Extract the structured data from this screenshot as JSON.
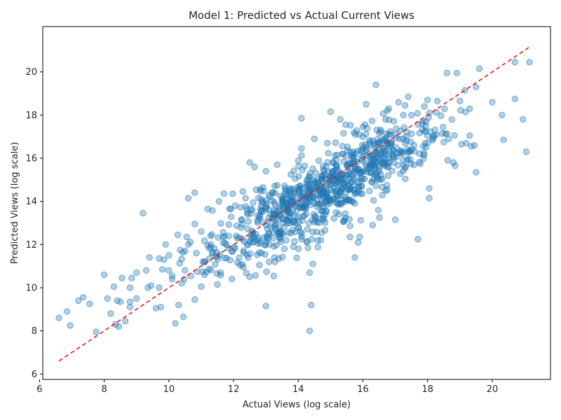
{
  "chart_data": {
    "type": "scatter",
    "title": "Model 1: Predicted vs Actual Current Views",
    "xlabel": "Actual Views (log scale)",
    "ylabel": "Predicted Views (log scale)",
    "xlim": [
      6.1,
      21.8
    ],
    "ylim": [
      5.75,
      22.1
    ],
    "xticks": [
      6,
      8,
      10,
      12,
      14,
      16,
      18,
      20
    ],
    "yticks": [
      6,
      8,
      10,
      12,
      14,
      16,
      18,
      20
    ],
    "grid": false,
    "point_color": "#1f77b4",
    "point_alpha": 0.35,
    "reference_line": {
      "x": [
        6.6,
        21.2
      ],
      "y": [
        6.6,
        21.2
      ],
      "color": "#e41a1c",
      "style": "dashed"
    },
    "points_explicit": [
      [
        6.6,
        8.6
      ],
      [
        6.85,
        8.9
      ],
      [
        6.95,
        8.25
      ],
      [
        7.2,
        9.4
      ],
      [
        7.35,
        9.55
      ],
      [
        7.55,
        9.25
      ],
      [
        7.75,
        7.95
      ],
      [
        8.0,
        10.6
      ],
      [
        8.1,
        9.5
      ],
      [
        8.2,
        8.8
      ],
      [
        8.3,
        10.05
      ],
      [
        8.35,
        8.3
      ],
      [
        8.4,
        9.4
      ],
      [
        8.45,
        8.2
      ],
      [
        8.5,
        9.35
      ],
      [
        8.55,
        10.45
      ],
      [
        8.65,
        8.45
      ],
      [
        8.8,
        10.0
      ],
      [
        8.8,
        9.1
      ],
      [
        8.8,
        9.35
      ],
      [
        8.85,
        10.45
      ],
      [
        9.0,
        10.7
      ],
      [
        9.0,
        9.5
      ],
      [
        9.2,
        13.45
      ],
      [
        9.3,
        10.8
      ],
      [
        9.35,
        10.0
      ],
      [
        9.4,
        11.4
      ],
      [
        9.45,
        10.1
      ],
      [
        9.6,
        9.05
      ],
      [
        9.7,
        10.0
      ],
      [
        9.7,
        11.35
      ],
      [
        9.75,
        9.1
      ],
      [
        9.8,
        10.85
      ],
      [
        9.85,
        11.3
      ],
      [
        9.9,
        12.0
      ],
      [
        10.0,
        10.8
      ],
      [
        10.0,
        11.5
      ],
      [
        10.1,
        10.55
      ],
      [
        10.1,
        10.4
      ],
      [
        10.2,
        8.35
      ],
      [
        10.3,
        9.2
      ],
      [
        10.35,
        11.75
      ],
      [
        10.4,
        10.2
      ],
      [
        10.45,
        8.65
      ],
      [
        10.5,
        10.8
      ],
      [
        10.5,
        11.7
      ],
      [
        10.55,
        12.35
      ],
      [
        10.6,
        14.15
      ],
      [
        10.6,
        12.0
      ],
      [
        10.8,
        9.45
      ],
      [
        10.8,
        14.4
      ],
      [
        10.85,
        11.6
      ],
      [
        10.8,
        12.95
      ],
      [
        11.0,
        10.05
      ],
      [
        11.0,
        12.6
      ],
      [
        11.05,
        11.2
      ],
      [
        11.1,
        10.6
      ],
      [
        11.2,
        13.65
      ],
      [
        11.3,
        12.0
      ],
      [
        11.5,
        10.15
      ],
      [
        11.55,
        14.0
      ],
      [
        11.6,
        10.7
      ],
      [
        11.85,
        12.4
      ],
      [
        11.95,
        10.4
      ],
      [
        12.05,
        13.8
      ],
      [
        12.2,
        11.05
      ],
      [
        12.3,
        10.95
      ],
      [
        12.5,
        15.8
      ],
      [
        12.5,
        10.5
      ],
      [
        12.65,
        15.6
      ],
      [
        12.8,
        11.05
      ],
      [
        13.0,
        15.4
      ],
      [
        13.0,
        9.15
      ],
      [
        13.1,
        11.2
      ],
      [
        13.35,
        15.7
      ],
      [
        13.4,
        11.35
      ],
      [
        13.85,
        11.9
      ],
      [
        14.1,
        17.85
      ],
      [
        14.1,
        16.45
      ],
      [
        14.3,
        11.85
      ],
      [
        14.35,
        10.7
      ],
      [
        14.4,
        9.2
      ],
      [
        14.35,
        8.0
      ],
      [
        14.45,
        11.1
      ],
      [
        14.5,
        16.9
      ],
      [
        14.7,
        12.2
      ],
      [
        14.9,
        16.7
      ],
      [
        15.0,
        18.15
      ],
      [
        15.3,
        17.8
      ],
      [
        15.4,
        17.15
      ],
      [
        15.6,
        12.35
      ],
      [
        15.75,
        11.4
      ],
      [
        15.85,
        12.1
      ],
      [
        15.9,
        12.35
      ],
      [
        16.0,
        17.45
      ],
      [
        16.1,
        18.5
      ],
      [
        16.3,
        12.9
      ],
      [
        16.4,
        19.4
      ],
      [
        16.7,
        17.8
      ],
      [
        16.8,
        18.3
      ],
      [
        17.0,
        13.15
      ],
      [
        17.1,
        18.6
      ],
      [
        17.3,
        18.45
      ],
      [
        17.4,
        18.85
      ],
      [
        17.5,
        18.0
      ],
      [
        17.7,
        12.25
      ],
      [
        17.9,
        18.4
      ],
      [
        18.0,
        18.7
      ],
      [
        18.05,
        14.15
      ],
      [
        18.05,
        14.6
      ],
      [
        18.3,
        18.65
      ],
      [
        18.5,
        16.75
      ],
      [
        18.6,
        19.95
      ],
      [
        18.65,
        16.9
      ],
      [
        18.8,
        15.8
      ],
      [
        18.85,
        15.65
      ],
      [
        18.9,
        19.95
      ],
      [
        19.0,
        18.65
      ],
      [
        19.05,
        16.65
      ],
      [
        19.15,
        19.15
      ],
      [
        19.2,
        16.7
      ],
      [
        19.3,
        18.3
      ],
      [
        19.3,
        17.05
      ],
      [
        19.35,
        16.55
      ],
      [
        19.45,
        16.6
      ],
      [
        19.5,
        19.3
      ],
      [
        19.5,
        15.35
      ],
      [
        19.6,
        20.15
      ],
      [
        20.0,
        18.6
      ],
      [
        20.3,
        18.0
      ],
      [
        20.35,
        16.85
      ],
      [
        20.7,
        20.45
      ],
      [
        20.7,
        18.75
      ],
      [
        20.95,
        17.8
      ],
      [
        21.05,
        16.3
      ],
      [
        21.15,
        20.45
      ]
    ],
    "cluster": {
      "n": 900,
      "center_x": 14.7,
      "center_y": 14.4,
      "sx": 1.8,
      "slope": 0.82,
      "sy": 0.85,
      "seed": 20240611
    }
  }
}
